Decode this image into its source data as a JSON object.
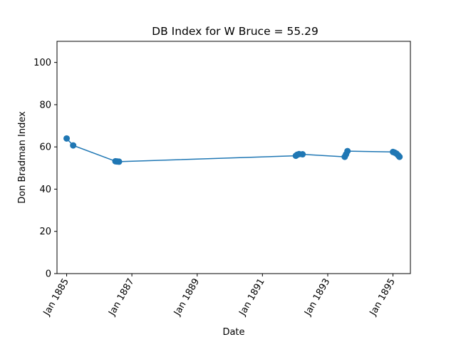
{
  "chart_data": {
    "type": "line",
    "title": "DB Index for W Bruce = 55.29",
    "xlabel": "Date",
    "ylabel": "Don Bradman Index",
    "ylim": [
      0,
      110
    ],
    "xlim": [
      "1884-09-15",
      "1895-07-15"
    ],
    "yticks": [
      0,
      20,
      40,
      60,
      80,
      100
    ],
    "xticks": [
      {
        "date": "1885-01-01",
        "label": "Jan 1885"
      },
      {
        "date": "1887-01-01",
        "label": "Jan 1887"
      },
      {
        "date": "1889-01-01",
        "label": "Jan 1889"
      },
      {
        "date": "1891-01-01",
        "label": "Jan 1891"
      },
      {
        "date": "1893-01-01",
        "label": "Jan 1893"
      },
      {
        "date": "1895-01-01",
        "label": "Jan 1895"
      }
    ],
    "grid": false,
    "color": "#1f77b4",
    "series": [
      {
        "x": [
          "1885-01-01",
          "1885-03-15",
          "1886-07-01",
          "1886-07-20",
          "1886-08-10",
          "1892-01-10",
          "1892-01-25",
          "1892-02-15",
          "1892-03-25",
          "1893-07-10",
          "1893-07-25",
          "1893-08-10",
          "1895-01-01",
          "1895-01-20",
          "1895-02-10",
          "1895-03-01",
          "1895-03-15"
        ],
        "y": [
          64,
          60.7,
          53.2,
          53.1,
          53.0,
          55.8,
          56.3,
          56.6,
          56.5,
          55.3,
          56.5,
          58.0,
          57.6,
          57.3,
          56.8,
          56.0,
          55.3
        ]
      }
    ]
  }
}
